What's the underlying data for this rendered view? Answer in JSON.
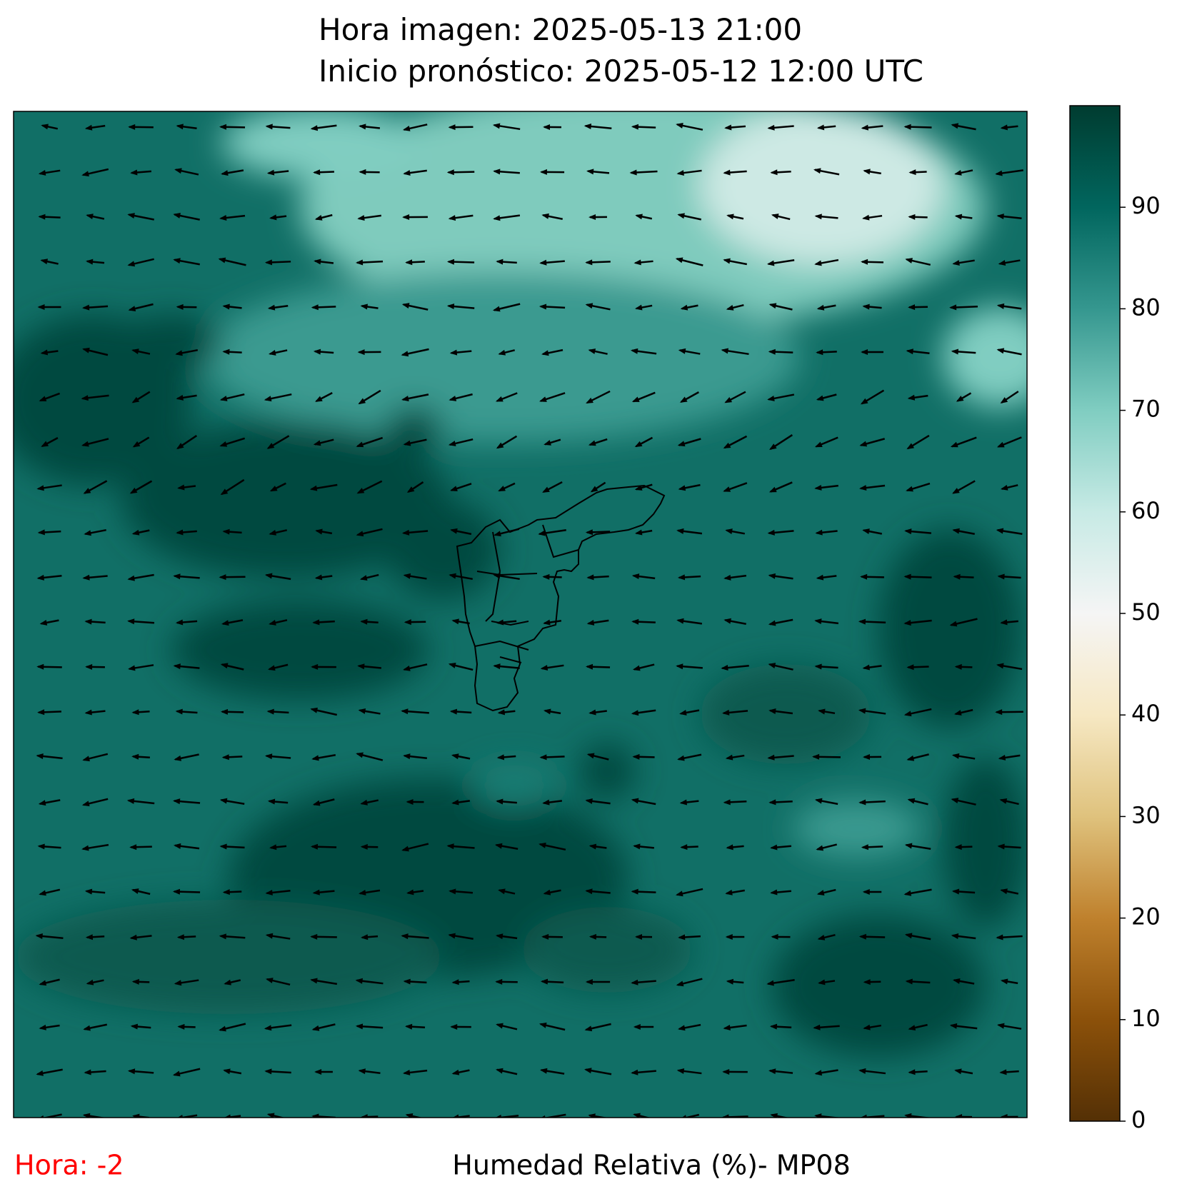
{
  "header": {
    "line1": "Hora imagen: 2025-05-13 21:00",
    "line2": "Inicio pronóstico: 2025-05-12 12:00 UTC"
  },
  "colorbar": {
    "lim": [
      0,
      100
    ],
    "ticks": [
      0,
      10,
      20,
      30,
      40,
      50,
      60,
      70,
      80,
      90
    ]
  },
  "footer": {
    "hour": "Hora: -2",
    "caption": "Humedad Relativa (%)- MP08"
  }
}
